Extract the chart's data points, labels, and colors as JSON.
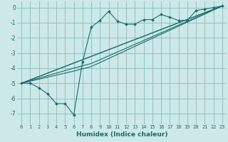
{
  "title": "",
  "xlabel": "Humidex (Indice chaleur)",
  "bg_color": "#cce8e8",
  "grid_color": "#88bbbb",
  "line_color": "#1a6e6a",
  "xlim": [
    -0.5,
    23.5
  ],
  "ylim": [
    -7.7,
    0.4
  ],
  "xticks": [
    0,
    1,
    2,
    3,
    4,
    5,
    6,
    7,
    8,
    9,
    10,
    11,
    12,
    13,
    14,
    15,
    16,
    17,
    18,
    19,
    20,
    21,
    22,
    23
  ],
  "yticks": [
    0,
    -1,
    -2,
    -3,
    -4,
    -5,
    -6,
    -7
  ],
  "line1_x": [
    0,
    1,
    2,
    3,
    4,
    5,
    6,
    7,
    8,
    9,
    10,
    11,
    12,
    13,
    14,
    15,
    16,
    17,
    18,
    19,
    20,
    21,
    22,
    23
  ],
  "line1_y": [
    -5.0,
    -5.0,
    -5.3,
    -5.7,
    -6.35,
    -6.35,
    -7.1,
    -3.6,
    -1.3,
    -0.85,
    -0.25,
    -0.9,
    -1.1,
    -1.1,
    -0.8,
    -0.8,
    -0.45,
    -0.65,
    -0.85,
    -0.85,
    -0.2,
    -0.1,
    0.0,
    0.1
  ],
  "line2_x": [
    0,
    23
  ],
  "line2_y": [
    -5.0,
    0.1
  ],
  "line3_x": [
    0,
    23
  ],
  "line3_y": [
    -5.0,
    0.1
  ],
  "line4_x": [
    0,
    6,
    8,
    23
  ],
  "line4_y": [
    -5.0,
    -4.0,
    -3.7,
    0.1
  ],
  "line5_x": [
    0,
    6,
    8,
    23
  ],
  "line5_y": [
    -5.0,
    -4.2,
    -3.9,
    0.1
  ]
}
